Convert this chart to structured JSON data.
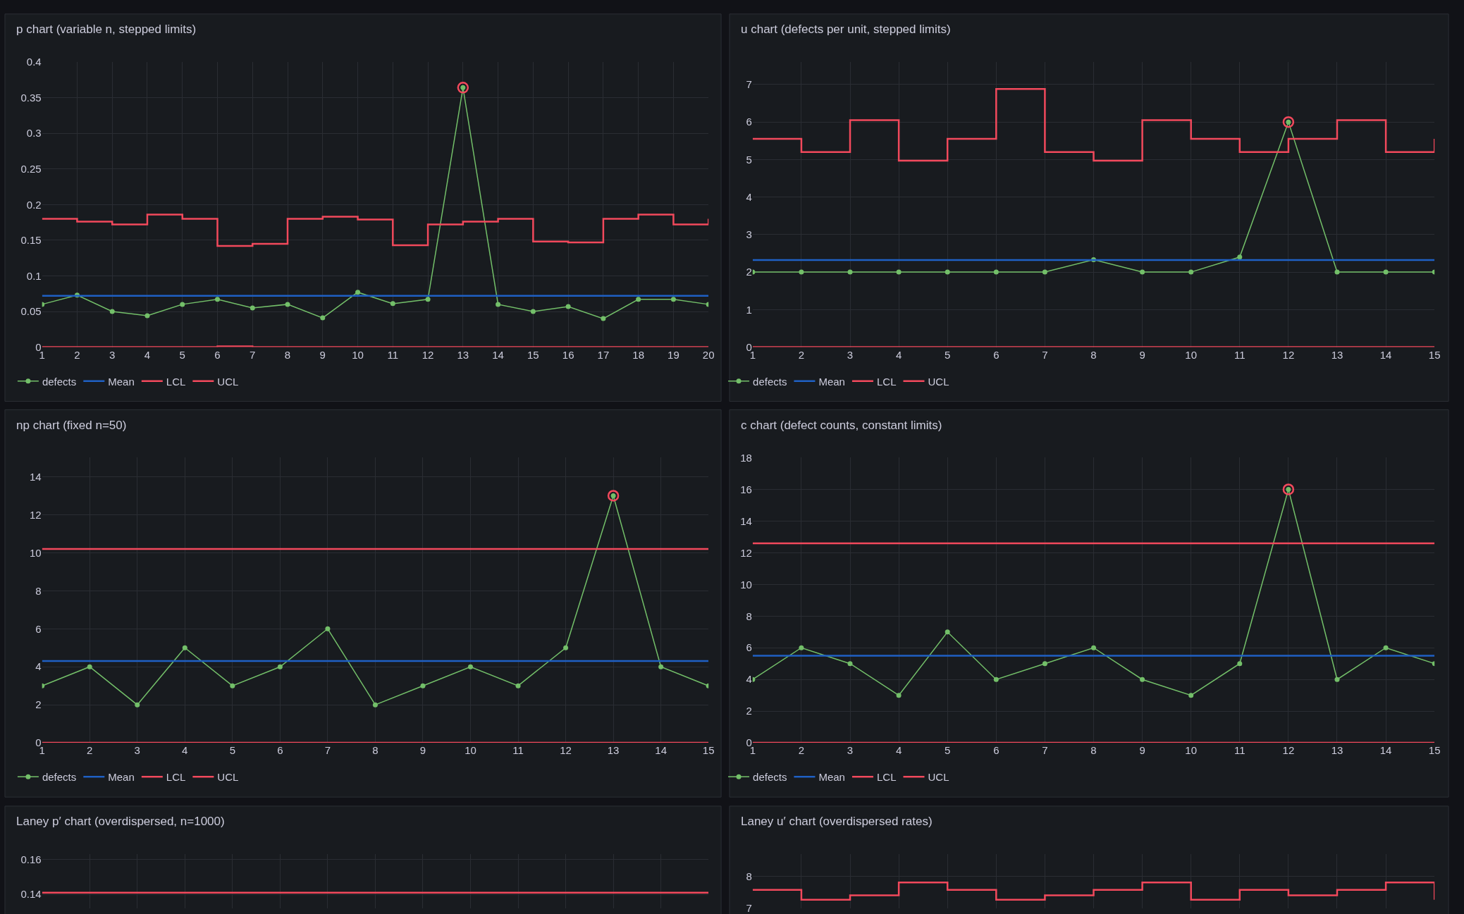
{
  "chart_data": [
    {
      "type": "line",
      "title": "p chart (variable n, stepped limits)",
      "x": [
        1,
        2,
        3,
        4,
        5,
        6,
        7,
        8,
        9,
        10,
        11,
        12,
        13,
        14,
        15,
        16,
        17,
        18,
        19,
        20
      ],
      "xlim": [
        1,
        20
      ],
      "xticks": [
        1,
        2,
        3,
        4,
        5,
        6,
        7,
        8,
        9,
        10,
        11,
        12,
        13,
        14,
        15,
        16,
        17,
        18,
        19,
        20
      ],
      "ylim": [
        0,
        0.4
      ],
      "yticks": [
        0,
        0.05,
        0.1,
        0.15,
        0.2,
        0.25,
        0.3,
        0.35,
        0.4
      ],
      "grid": true,
      "legend": "bottom left",
      "series": [
        {
          "name": "defects",
          "marker": "circle",
          "color": "#73bf69",
          "values": [
            0.06,
            0.073,
            0.05,
            0.044,
            0.06,
            0.067,
            0.055,
            0.06,
            0.041,
            0.077,
            0.061,
            0.067,
            0.364,
            0.06,
            0.05,
            0.057,
            0.04,
            0.067,
            0.067,
            0.06
          ]
        },
        {
          "name": "Mean",
          "color": "#1f60c4",
          "values": [
            0.072,
            0.072,
            0.072,
            0.072,
            0.072,
            0.072,
            0.072,
            0.072,
            0.072,
            0.072,
            0.072,
            0.072,
            0.072,
            0.072,
            0.072,
            0.072,
            0.072,
            0.072,
            0.072,
            0.072
          ]
        },
        {
          "name": "LCL",
          "type": "step",
          "color": "#f2495c",
          "values": [
            0,
            0,
            0,
            0,
            0,
            0.001,
            0,
            0,
            0,
            0,
            0,
            0,
            0,
            0,
            0,
            0,
            0,
            0,
            0,
            0
          ]
        },
        {
          "name": "UCL",
          "type": "step",
          "color": "#f2495c",
          "values": [
            0.18,
            0.176,
            0.172,
            0.186,
            0.18,
            0.142,
            0.145,
            0.18,
            0.183,
            0.179,
            0.143,
            0.172,
            0.176,
            0.18,
            0.148,
            0.147,
            0.18,
            0.186,
            0.172,
            0.18
          ]
        },
        {
          "type": "scatter",
          "marker": "circle",
          "color": "#f2495c",
          "values": [
            null,
            null,
            null,
            null,
            null,
            null,
            null,
            null,
            null,
            null,
            null,
            null,
            0.364,
            null,
            null,
            null,
            null,
            null,
            null,
            null
          ]
        }
      ]
    },
    {
      "type": "line",
      "title": "u chart (defects per unit, stepped limits)",
      "x": [
        1,
        2,
        3,
        4,
        5,
        6,
        7,
        8,
        9,
        10,
        11,
        12,
        13,
        14,
        15
      ],
      "xlim": [
        1,
        15
      ],
      "xticks": [
        1,
        2,
        3,
        4,
        5,
        6,
        7,
        8,
        9,
        10,
        11,
        12,
        13,
        14,
        15
      ],
      "ylim": [
        0,
        7.6
      ],
      "yticks": [
        0,
        1,
        2,
        3,
        4,
        5,
        6,
        7
      ],
      "grid": true,
      "legend": "bottom left",
      "series": [
        {
          "name": "defects",
          "marker": "circle",
          "color": "#73bf69",
          "values": [
            2,
            2,
            2,
            2,
            2,
            2,
            2,
            2.33,
            2,
            2,
            2.4,
            6,
            2,
            2,
            2
          ]
        },
        {
          "name": "Mean",
          "color": "#1f60c4",
          "values": [
            2.32,
            2.32,
            2.32,
            2.32,
            2.32,
            2.32,
            2.32,
            2.32,
            2.32,
            2.32,
            2.32,
            2.32,
            2.32,
            2.32,
            2.32
          ]
        },
        {
          "name": "LCL",
          "type": "step",
          "color": "#f2495c",
          "values": [
            0,
            0,
            0,
            0,
            0,
            0,
            0,
            0,
            0,
            0,
            0,
            0,
            0,
            0,
            0
          ]
        },
        {
          "name": "UCL",
          "type": "step",
          "color": "#f2495c",
          "values": [
            5.55,
            5.2,
            6.05,
            4.97,
            5.55,
            6.88,
            5.2,
            4.97,
            6.05,
            5.55,
            5.2,
            5.55,
            6.05,
            5.2,
            5.55
          ]
        },
        {
          "type": "scatter",
          "marker": "circle",
          "color": "#f2495c",
          "values": [
            null,
            null,
            null,
            null,
            null,
            null,
            null,
            null,
            null,
            null,
            null,
            6,
            null,
            null,
            null
          ]
        }
      ]
    },
    {
      "type": "line",
      "title": "np chart (fixed n=50)",
      "x": [
        1,
        2,
        3,
        4,
        5,
        6,
        7,
        8,
        9,
        10,
        11,
        12,
        13,
        14,
        15
      ],
      "xlim": [
        1,
        15
      ],
      "xticks": [
        1,
        2,
        3,
        4,
        5,
        6,
        7,
        8,
        9,
        10,
        11,
        12,
        13,
        14,
        15
      ],
      "ylim": [
        0,
        15
      ],
      "yticks": [
        0,
        2,
        4,
        6,
        8,
        10,
        12,
        14
      ],
      "grid": true,
      "legend": "bottom left",
      "series": [
        {
          "name": "defects",
          "marker": "circle",
          "color": "#73bf69",
          "values": [
            3,
            4,
            2,
            5,
            3,
            4,
            6,
            2,
            3,
            4,
            3,
            5,
            13,
            4,
            3
          ]
        },
        {
          "name": "Mean",
          "color": "#1f60c4",
          "values": [
            4.3,
            4.3,
            4.3,
            4.3,
            4.3,
            4.3,
            4.3,
            4.3,
            4.3,
            4.3,
            4.3,
            4.3,
            4.3,
            4.3,
            4.3
          ]
        },
        {
          "name": "LCL",
          "color": "#f2495c",
          "values": [
            0,
            0,
            0,
            0,
            0,
            0,
            0,
            0,
            0,
            0,
            0,
            0,
            0,
            0,
            0
          ]
        },
        {
          "name": "UCL",
          "color": "#f2495c",
          "values": [
            10.2,
            10.2,
            10.2,
            10.2,
            10.2,
            10.2,
            10.2,
            10.2,
            10.2,
            10.2,
            10.2,
            10.2,
            10.2,
            10.2,
            10.2
          ]
        },
        {
          "type": "scatter",
          "marker": "circle",
          "color": "#f2495c",
          "values": [
            null,
            null,
            null,
            null,
            null,
            null,
            null,
            null,
            null,
            null,
            null,
            null,
            13,
            null,
            null
          ]
        }
      ]
    },
    {
      "type": "line",
      "title": "c chart (defect counts, constant limits)",
      "x": [
        1,
        2,
        3,
        4,
        5,
        6,
        7,
        8,
        9,
        10,
        11,
        12,
        13,
        14,
        15
      ],
      "xlim": [
        1,
        15
      ],
      "xticks": [
        1,
        2,
        3,
        4,
        5,
        6,
        7,
        8,
        9,
        10,
        11,
        12,
        13,
        14,
        15
      ],
      "ylim": [
        0,
        18
      ],
      "yticks": [
        0,
        2,
        4,
        6,
        8,
        10,
        12,
        14,
        16,
        18
      ],
      "grid": true,
      "legend": "bottom left",
      "series": [
        {
          "name": "defects",
          "marker": "circle",
          "color": "#73bf69",
          "values": [
            4,
            6,
            5,
            3,
            7,
            4,
            5,
            6,
            4,
            3,
            5,
            16,
            4,
            6,
            5
          ]
        },
        {
          "name": "Mean",
          "color": "#1f60c4",
          "values": [
            5.5,
            5.5,
            5.5,
            5.5,
            5.5,
            5.5,
            5.5,
            5.5,
            5.5,
            5.5,
            5.5,
            5.5,
            5.5,
            5.5,
            5.5
          ]
        },
        {
          "name": "LCL",
          "color": "#f2495c",
          "values": [
            0,
            0,
            0,
            0,
            0,
            0,
            0,
            0,
            0,
            0,
            0,
            0,
            0,
            0,
            0
          ]
        },
        {
          "name": "UCL",
          "color": "#f2495c",
          "values": [
            12.6,
            12.6,
            12.6,
            12.6,
            12.6,
            12.6,
            12.6,
            12.6,
            12.6,
            12.6,
            12.6,
            12.6,
            12.6,
            12.6,
            12.6
          ]
        },
        {
          "type": "scatter",
          "marker": "circle",
          "color": "#f2495c",
          "values": [
            null,
            null,
            null,
            null,
            null,
            null,
            null,
            null,
            null,
            null,
            null,
            16,
            null,
            null,
            null
          ]
        }
      ]
    },
    {
      "type": "line",
      "title": "Laney p′ chart (overdispersed, n=1000)",
      "x": [
        1,
        2,
        3,
        4,
        5,
        6,
        7,
        8,
        9,
        10,
        11,
        12,
        13,
        14,
        15
      ],
      "xlim": [
        1,
        15
      ],
      "ylim": [
        0.132,
        0.163
      ],
      "yticks": [
        0.14,
        0.16
      ],
      "grid": true,
      "tick_labels": "y",
      "series": [
        {
          "color": "#f2495c",
          "values": [
            0.141,
            0.141,
            0.141,
            0.141,
            0.141,
            0.141,
            0.141,
            0.141,
            0.141,
            0.141,
            0.141,
            0.141,
            0.141,
            0.141,
            0.141
          ]
        }
      ]
    },
    {
      "type": "step",
      "title": "Laney u′ chart (overdispersed rates)",
      "x": [
        1,
        2,
        3,
        4,
        5,
        6,
        7,
        8,
        9,
        10,
        11,
        12,
        13,
        14,
        15
      ],
      "xlim": [
        1,
        15
      ],
      "ylim": [
        6.99,
        8.69
      ],
      "yticks": [
        7,
        8
      ],
      "grid": true,
      "tick_labels": "y",
      "series": [
        {
          "color": "#f2495c",
          "values": [
            7.57,
            7.26,
            7.4,
            7.8,
            7.57,
            7.26,
            7.4,
            7.57,
            7.8,
            7.26,
            7.57,
            7.4,
            7.57,
            7.8,
            7.26
          ]
        }
      ]
    }
  ]
}
